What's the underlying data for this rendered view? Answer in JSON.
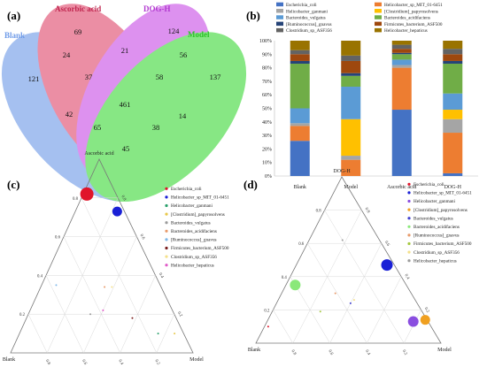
{
  "panels": {
    "a": "(a)",
    "b": "(b)",
    "c": "(c)",
    "d": "(d)"
  },
  "venn": {
    "sets": [
      {
        "name": "Blank",
        "color": "#6f9be8"
      },
      {
        "name": "Ascorbic acid",
        "color": "#e04a6e"
      },
      {
        "name": "DOG-H",
        "color": "#c94ee6"
      },
      {
        "name": "Model",
        "color": "#3fd93a"
      }
    ],
    "regions": [
      {
        "key": "B",
        "value": "121"
      },
      {
        "key": "A",
        "value": "69"
      },
      {
        "key": "D",
        "value": "124"
      },
      {
        "key": "M",
        "value": "137"
      },
      {
        "key": "BA",
        "value": "24"
      },
      {
        "key": "AD",
        "value": "21"
      },
      {
        "key": "DM",
        "value": "56"
      },
      {
        "key": "BAD",
        "value": "37"
      },
      {
        "key": "ADM",
        "value": "58"
      },
      {
        "key": "BADM",
        "value": "461"
      },
      {
        "key": "BM",
        "value": "45"
      },
      {
        "key": "BD",
        "value": "42"
      },
      {
        "key": "AM",
        "value": "14"
      },
      {
        "key": "BDM",
        "value": "65"
      },
      {
        "key": "BAM",
        "value": "38"
      }
    ]
  },
  "chart_data": [
    {
      "panel": "b",
      "type": "bar",
      "stacked": true,
      "categories": [
        "Blank",
        "Model",
        "Ascorbic acid",
        "DOG-H"
      ],
      "ylim": [
        0,
        100
      ],
      "yticks": [
        "0%",
        "10%",
        "20%",
        "30%",
        "40%",
        "50%",
        "60%",
        "70%",
        "80%",
        "90%",
        "100%"
      ],
      "legend_position": "top",
      "series": [
        {
          "name": "Escherichia_coli",
          "color": "#4472c4",
          "values": [
            26,
            0,
            49,
            2
          ]
        },
        {
          "name": "Helicobacter_sp_MIT_01-6451",
          "color": "#ed7d31",
          "values": [
            11,
            12,
            31,
            30
          ]
        },
        {
          "name": "Helicobacter_ganmani",
          "color": "#a5a5a5",
          "values": [
            2,
            3,
            2,
            10
          ]
        },
        {
          "name": "[Clostridium]_papyrosolvens",
          "color": "#ffc000",
          "values": [
            0,
            27,
            0,
            7
          ]
        },
        {
          "name": "Bacteroides_vulgatus",
          "color": "#5b9bd5",
          "values": [
            11,
            24,
            4,
            12
          ]
        },
        {
          "name": "Bacteroides_acidifaciens",
          "color": "#70ad47",
          "values": [
            33,
            8,
            4,
            22
          ]
        },
        {
          "name": "[Ruminococcus]_gnavus",
          "color": "#264478",
          "values": [
            2,
            2,
            1,
            2
          ]
        },
        {
          "name": "Firmicutes_bacterium_ASF500",
          "color": "#9e480e",
          "values": [
            5,
            9,
            3,
            5
          ]
        },
        {
          "name": "Clostridium_sp_ASF356",
          "color": "#636363",
          "values": [
            3,
            4,
            3,
            4
          ]
        },
        {
          "name": "Helicobacter_hepaticus",
          "color": "#997300",
          "values": [
            7,
            11,
            3,
            6
          ]
        }
      ]
    },
    {
      "panel": "c",
      "type": "scatter",
      "subtype": "ternary",
      "axes": {
        "top": "Ascorbic acid",
        "left": "Blank",
        "right": "Model"
      },
      "ticks": [
        "0.2",
        "0.4",
        "0.6",
        "0.8"
      ],
      "legend_position": "right",
      "points": [
        {
          "series": "Escherichia_coli",
          "color": "#e0142a",
          "a": 0.82,
          "b": 0.16,
          "c": 0.02,
          "size": 15
        },
        {
          "series": "Helicobacter_sp_MIT_01-6451",
          "color": "#1a20d6",
          "a": 0.73,
          "b": 0.04,
          "c": 0.23,
          "size": 11
        },
        {
          "series": "Helicobacter_ganmani",
          "color": "#29a06b",
          "a": 0.1,
          "b": 0.14,
          "c": 0.76,
          "size": 2
        },
        {
          "series": "[Clostridium]_papyrosolvens",
          "color": "#e8c84a",
          "a": 0.1,
          "b": 0.05,
          "c": 0.85,
          "size": 2
        },
        {
          "series": "Bacteroides_vulgatus",
          "color": "#9a9a9a",
          "a": 0.2,
          "b": 0.46,
          "c": 0.34,
          "size": 2
        },
        {
          "series": "Bacteroides_acidifaciens",
          "color": "#e89a6a",
          "a": 0.34,
          "b": 0.31,
          "c": 0.35,
          "size": 2
        },
        {
          "series": "[Ruminococcus]_gnavus",
          "color": "#7fb8e8",
          "a": 0.35,
          "b": 0.57,
          "c": 0.08,
          "size": 2
        },
        {
          "series": "Firmicutes_bacterium_ASF500",
          "color": "#7a1e1e",
          "a": 0.18,
          "b": 0.24,
          "c": 0.58,
          "size": 2
        },
        {
          "series": "Clostridium_sp_ASF356",
          "color": "#f4e08a",
          "a": 0.34,
          "b": 0.27,
          "c": 0.39,
          "size": 2
        },
        {
          "series": "Helicobacter_hepaticus",
          "color": "#e05ac8",
          "a": 0.22,
          "b": 0.38,
          "c": 0.4,
          "size": 2
        }
      ]
    },
    {
      "panel": "d",
      "type": "scatter",
      "subtype": "ternary",
      "axes": {
        "top": "DOG-H",
        "left": "Blank",
        "right": "Model"
      },
      "ticks": [
        "0.2",
        "0.4",
        "0.6",
        "0.8"
      ],
      "legend_position": "right",
      "points": [
        {
          "series": "Escherichia_coli",
          "color": "#e0142a",
          "a": 0.1,
          "b": 0.88,
          "c": 0.02,
          "size": 2
        },
        {
          "series": "Helicobacter_sp_MIT_01-6451",
          "color": "#1a20d6",
          "a": 0.47,
          "b": 0.04,
          "c": 0.49,
          "size": 13
        },
        {
          "series": "Helicobacter_ganmani",
          "color": "#8a4ee0",
          "a": 0.13,
          "b": 0.08,
          "c": 0.79,
          "size": 12
        },
        {
          "series": "[Clostridium]_papyrosolvens",
          "color": "#f0a020",
          "a": 0.14,
          "b": 0.01,
          "c": 0.85,
          "size": 11
        },
        {
          "series": "Bacteroides_vulgatus",
          "color": "#4040d0",
          "a": 0.24,
          "b": 0.36,
          "c": 0.4,
          "size": 2
        },
        {
          "series": "Bacteroides_acidifaciens",
          "color": "#8ae87a",
          "a": 0.35,
          "b": 0.6,
          "c": 0.05,
          "size": 12
        },
        {
          "series": "[Ruminococcus]_gnavus",
          "color": "#e89a6a",
          "a": 0.3,
          "b": 0.41,
          "c": 0.29,
          "size": 2
        },
        {
          "series": "Firmicutes_bacterium_ASF500",
          "color": "#a5c840",
          "a": 0.19,
          "b": 0.55,
          "c": 0.26,
          "size": 2
        },
        {
          "series": "Clostridium_sp_ASF356",
          "color": "#f4e08a",
          "a": 0.26,
          "b": 0.33,
          "c": 0.41,
          "size": 2
        },
        {
          "series": "Helicobacter_hepaticus",
          "color": "#9a9a9a",
          "a": 0.62,
          "b": 0.2,
          "c": 0.18,
          "size": 2
        }
      ]
    }
  ]
}
